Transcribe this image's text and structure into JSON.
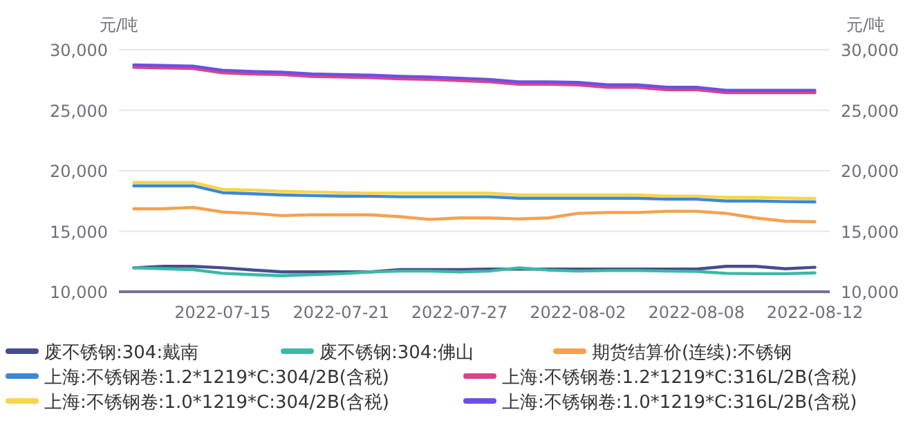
{
  "chart_data": {
    "type": "line",
    "ylabel": "元/吨",
    "y2label": "元/吨",
    "categories": [
      null,
      null,
      null,
      "2022-07-15",
      null,
      null,
      null,
      "2022-07-21",
      null,
      null,
      null,
      "2022-07-27",
      null,
      null,
      null,
      "2022-08-02",
      null,
      null,
      null,
      "2022-08-08",
      null,
      null,
      null,
      "2022-08-12"
    ],
    "ylim": [
      10000,
      30000
    ],
    "yticks": [
      {
        "value": 10000,
        "label": "10,000"
      },
      {
        "value": 15000,
        "label": "15,000"
      },
      {
        "value": 20000,
        "label": "20,000"
      },
      {
        "value": 25000,
        "label": "25,000"
      },
      {
        "value": 30000,
        "label": "30,000"
      }
    ],
    "y2lim": [
      10000,
      30000
    ],
    "y2ticks": [
      {
        "value": 10000,
        "label": "10,000"
      },
      {
        "value": 15000,
        "label": "15,000"
      },
      {
        "value": 20000,
        "label": "20,000"
      },
      {
        "value": 25000,
        "label": "25,000"
      },
      {
        "value": 30000,
        "label": "30,000"
      }
    ],
    "grid": "y",
    "legend": "bottom",
    "marker": "none",
    "line_style": "solid",
    "series": [
      {
        "name": "废不锈钢:304:戴南",
        "color": "#464d8f",
        "values": [
          11980,
          12100,
          12100,
          11980,
          11800,
          11640,
          11640,
          11640,
          11640,
          11830,
          11830,
          11830,
          11870,
          11870,
          11870,
          11870,
          11870,
          11870,
          11870,
          11870,
          12100,
          12100,
          11900,
          12020
        ]
      },
      {
        "name": "废不锈钢:304:佛山",
        "color": "#3ab9a7",
        "values": [
          11980,
          11900,
          11830,
          11520,
          11410,
          11330,
          11410,
          11490,
          11640,
          11710,
          11710,
          11640,
          11710,
          11980,
          11790,
          11710,
          11750,
          11750,
          11710,
          11680,
          11520,
          11490,
          11490,
          11560
        ]
      },
      {
        "name": "期货结算价(连续):不锈钢",
        "color": "#f5a050",
        "values": [
          16860,
          16860,
          16970,
          16590,
          16480,
          16290,
          16360,
          16360,
          16360,
          16200,
          15980,
          16100,
          16100,
          16020,
          16100,
          16480,
          16550,
          16550,
          16650,
          16650,
          16480,
          16100,
          15830,
          15790
        ]
      },
      {
        "name": "上海:不锈钢卷:1.2*1219*C:304/2B(含税)",
        "color": "#3c87d8",
        "values": [
          18760,
          18760,
          18760,
          18190,
          18100,
          18000,
          17950,
          17900,
          17890,
          17850,
          17850,
          17850,
          17850,
          17730,
          17730,
          17730,
          17730,
          17730,
          17650,
          17650,
          17500,
          17500,
          17450,
          17430
        ]
      },
      {
        "name": "上海:不锈钢卷:1.2*1219*C:316L/2B(含税)",
        "color": "#d9448e",
        "values": [
          28550,
          28500,
          28450,
          28100,
          28000,
          27950,
          27800,
          27750,
          27700,
          27600,
          27550,
          27450,
          27350,
          27150,
          27150,
          27100,
          26900,
          26900,
          26700,
          26700,
          26450,
          26450,
          26450,
          26450
        ]
      },
      {
        "name": "上海:不锈钢卷:1.0*1219*C:304/2B(含税)",
        "color": "#f5d54a",
        "values": [
          19030,
          19030,
          19030,
          18460,
          18400,
          18300,
          18250,
          18190,
          18150,
          18150,
          18150,
          18150,
          18150,
          18000,
          18000,
          18000,
          18000,
          18000,
          17900,
          17900,
          17800,
          17800,
          17750,
          17700
        ]
      },
      {
        "name": "上海:不锈钢卷:1.0*1219*C:316L/2B(含税)",
        "color": "#6d50e0",
        "values": [
          28750,
          28700,
          28650,
          28300,
          28200,
          28150,
          28000,
          27950,
          27900,
          27800,
          27750,
          27650,
          27550,
          27350,
          27350,
          27300,
          27100,
          27100,
          26900,
          26900,
          26650,
          26650,
          26650,
          26650
        ]
      }
    ]
  }
}
